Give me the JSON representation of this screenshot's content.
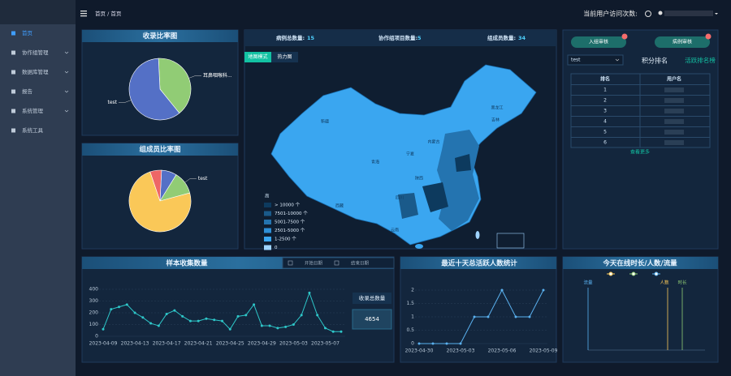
{
  "sidebar": {
    "menu": [
      "首页",
      "协作组管理",
      "数据库管理",
      "报告",
      "系统管理",
      "系统工具"
    ]
  },
  "topbar": {
    "breadcrumb": "首页 / 首页",
    "visits_label": "当前用户访问次数:"
  },
  "map_panel": {
    "stats": [
      {
        "label": "病例总数量:",
        "value": 15
      },
      {
        "label": "协作组项目数量:",
        "value": 5
      },
      {
        "label": "组成员数量:",
        "value": 34
      }
    ],
    "buttons": [
      "地图模式",
      "热力图"
    ],
    "legend_title": "高",
    "legend": [
      {
        "label": "> 10000 个",
        "color": "#0d3a5e"
      },
      {
        "label": "7501-10000 个",
        "color": "#1a5a8a"
      },
      {
        "label": "5001-7500 个",
        "color": "#2474b0"
      },
      {
        "label": "2501-5000 个",
        "color": "#2e8fd6"
      },
      {
        "label": "1-2500 个",
        "color": "#3aa6f0"
      },
      {
        "label": "0",
        "color": "#9fd4ff"
      }
    ],
    "provinces": [
      "新疆",
      "西藏",
      "青海",
      "四川",
      "内蒙古",
      "黑龙江",
      "吉林",
      "宁夏",
      "陕西",
      "云南"
    ]
  },
  "rank_panel": {
    "buttons": [
      "入组审核",
      "病例审核"
    ],
    "select": "test",
    "tabs": [
      "积分排名",
      "活跃排名榜"
    ],
    "header": [
      "排名",
      "用户名"
    ],
    "rows": [
      1,
      2,
      3,
      4,
      5,
      6
    ],
    "more": "查看更多"
  },
  "online_panel": {
    "title": "今天在线时长/人数/流量",
    "axis_labels": [
      "流量",
      "人数",
      "时长"
    ]
  },
  "chart_data": [
    {
      "type": "pie",
      "title": "收录比率图",
      "labels": [
        "耳鼻咽喉科...",
        "test"
      ],
      "values": [
        40,
        60
      ],
      "colors": [
        "#91cc75",
        "#5470c6"
      ]
    },
    {
      "type": "pie",
      "title": "组成员比率图",
      "labels": [
        null,
        "test",
        null,
        null
      ],
      "values": [
        8,
        12,
        74,
        6
      ],
      "colors": [
        "#5470c6",
        "#91cc75",
        "#fac858",
        "#ee6666"
      ]
    },
    {
      "type": "line",
      "title": "样本收集数量",
      "start_label": "开始日期",
      "end_label": "结束日期",
      "total_label": "收录总数量",
      "total": 4654,
      "categories": [
        "2023-04-09",
        null,
        null,
        null,
        "2023-04-13",
        null,
        null,
        null,
        "2023-04-17",
        null,
        null,
        null,
        "2023-04-21",
        null,
        null,
        null,
        "2023-04-25",
        null,
        null,
        null,
        "2023-04-29",
        null,
        null,
        null,
        "2023-05-03",
        null,
        null,
        null,
        "2023-05-07",
        null,
        null
      ],
      "values": [
        60,
        230,
        250,
        270,
        200,
        160,
        110,
        90,
        190,
        220,
        170,
        130,
        130,
        150,
        140,
        130,
        60,
        170,
        180,
        270,
        90,
        90,
        70,
        80,
        100,
        180,
        370,
        180,
        70,
        40,
        40
      ],
      "color": "#2ec7c9",
      "ylim": [
        0,
        400
      ],
      "yticks": [
        0,
        100,
        200,
        300,
        400
      ]
    },
    {
      "type": "line",
      "title": "最近十天总活跃人数统计",
      "categories": [
        "2023-04-30",
        null,
        null,
        "2023-05-03",
        null,
        null,
        "2023-05-06",
        null,
        null,
        "2023-05-09"
      ],
      "values": [
        0,
        0,
        0,
        0,
        1,
        1,
        2,
        1,
        1,
        2
      ],
      "color": "#5ab1ef",
      "ylim": [
        0,
        2
      ],
      "yticks": [
        0,
        0.5,
        1,
        1.5,
        2
      ]
    }
  ]
}
